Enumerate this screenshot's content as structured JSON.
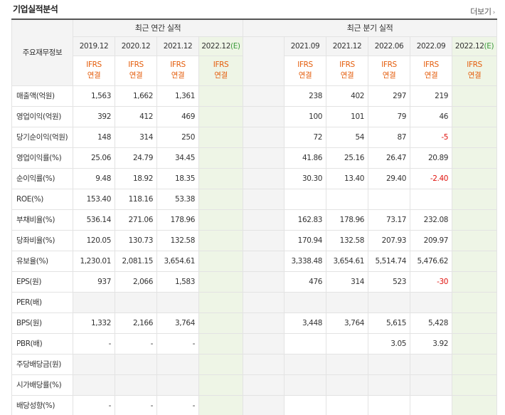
{
  "header": {
    "title": "기업실적분석",
    "more_label": "더보기"
  },
  "table": {
    "corner_label": "주요재무정보",
    "annual_group": "최근 연간 실적",
    "quarter_group": "최근 분기 실적",
    "annual_periods": [
      {
        "label": "2019.12",
        "est": ""
      },
      {
        "label": "2020.12",
        "est": ""
      },
      {
        "label": "2021.12",
        "est": ""
      },
      {
        "label": "2022.12",
        "est": "(E)"
      }
    ],
    "quarter_periods": [
      {
        "label": "2021.09",
        "est": ""
      },
      {
        "label": "2021.12",
        "est": ""
      },
      {
        "label": "2022.06",
        "est": ""
      },
      {
        "label": "2022.09",
        "est": ""
      },
      {
        "label": "2022.12",
        "est": "(E)"
      }
    ],
    "ifrs_line1": "IFRS",
    "ifrs_line2": "연결",
    "rows": [
      {
        "label": "매출액(억원)",
        "annual": [
          "1,563",
          "1,662",
          "1,361",
          ""
        ],
        "quarter": [
          "238",
          "402",
          "297",
          "219",
          ""
        ]
      },
      {
        "label": "영업이익(억원)",
        "annual": [
          "392",
          "412",
          "469",
          ""
        ],
        "quarter": [
          "100",
          "101",
          "79",
          "46",
          ""
        ]
      },
      {
        "label": "당기순이익(억원)",
        "annual": [
          "148",
          "314",
          "250",
          ""
        ],
        "quarter": [
          "72",
          "54",
          "87",
          "-5",
          ""
        ]
      },
      {
        "label": "영업이익률(%)",
        "annual": [
          "25.06",
          "24.79",
          "34.45",
          ""
        ],
        "quarter": [
          "41.86",
          "25.16",
          "26.47",
          "20.89",
          ""
        ]
      },
      {
        "label": "순이익률(%)",
        "annual": [
          "9.48",
          "18.92",
          "18.35",
          ""
        ],
        "quarter": [
          "30.30",
          "13.40",
          "29.40",
          "-2.40",
          ""
        ]
      },
      {
        "label": "ROE(%)",
        "annual": [
          "153.40",
          "118.16",
          "53.38",
          ""
        ],
        "quarter": [
          "",
          "",
          "",
          "",
          ""
        ]
      },
      {
        "label": "부채비율(%)",
        "annual": [
          "536.14",
          "271.06",
          "178.96",
          ""
        ],
        "quarter": [
          "162.83",
          "178.96",
          "73.17",
          "232.08",
          ""
        ]
      },
      {
        "label": "당좌비율(%)",
        "annual": [
          "120.05",
          "130.73",
          "132.58",
          ""
        ],
        "quarter": [
          "170.94",
          "132.58",
          "207.93",
          "209.97",
          ""
        ]
      },
      {
        "label": "유보율(%)",
        "annual": [
          "1,230.01",
          "2,081.15",
          "3,654.61",
          ""
        ],
        "quarter": [
          "3,338.48",
          "3,654.61",
          "5,514.74",
          "5,476.62",
          ""
        ]
      },
      {
        "label": "EPS(원)",
        "annual": [
          "937",
          "2,066",
          "1,583",
          ""
        ],
        "quarter": [
          "476",
          "314",
          "523",
          "-30",
          ""
        ]
      },
      {
        "label": "PER(배)",
        "annual": [
          "",
          "",
          "",
          ""
        ],
        "quarter": [
          "",
          "",
          "",
          "",
          ""
        ]
      },
      {
        "label": "BPS(원)",
        "annual": [
          "1,332",
          "2,166",
          "3,764",
          ""
        ],
        "quarter": [
          "3,448",
          "3,764",
          "5,615",
          "5,428",
          ""
        ]
      },
      {
        "label": "PBR(배)",
        "annual": [
          "-",
          "-",
          "-",
          ""
        ],
        "quarter": [
          "",
          "",
          "3.05",
          "3.92",
          ""
        ]
      },
      {
        "label": "주당배당금(원)",
        "annual": [
          "",
          "",
          "",
          ""
        ],
        "quarter": [
          "",
          "",
          "",
          "",
          ""
        ]
      },
      {
        "label": "시가배당률(%)",
        "annual": [
          "",
          "",
          "",
          ""
        ],
        "quarter": [
          "",
          "",
          "",
          "",
          ""
        ]
      },
      {
        "label": "배당성향(%)",
        "annual": [
          "-",
          "-",
          "-",
          ""
        ],
        "quarter": [
          "",
          "",
          "",
          "",
          ""
        ]
      }
    ]
  },
  "colors": {
    "negative": "#e0120d",
    "ifrs": "#e45d0c",
    "estimate_bg": "#eef5e6",
    "estimate_mark": "#3a9a3a"
  }
}
